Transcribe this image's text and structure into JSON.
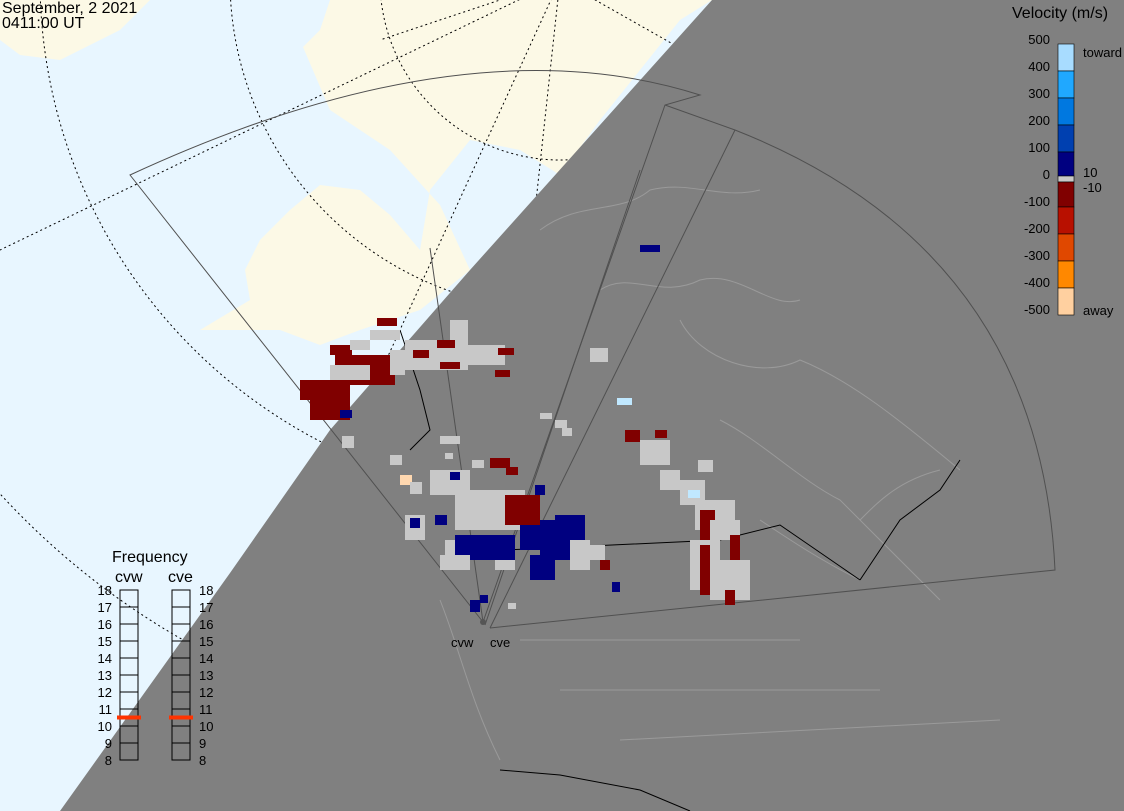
{
  "header": {
    "date": "September, 2 2021",
    "time": "0411:00 UT"
  },
  "colorbar": {
    "title": "Velocity (m/s)",
    "ticks": [
      "500",
      "400",
      "300",
      "200",
      "100",
      "0",
      "-100",
      "-200",
      "-300",
      "-400",
      "-500"
    ],
    "toward_label": "toward",
    "away_label": "away",
    "gs_upper": "10",
    "gs_lower": "-10",
    "colors": [
      "#a8dcff",
      "#20a8ff",
      "#0078e0",
      "#0040b0",
      "#000080",
      "#c8c8c8",
      "#800000",
      "#b81000",
      "#e04800",
      "#ff8800",
      "#ffd0a0"
    ]
  },
  "frequency": {
    "title": "Frequency",
    "radars": [
      {
        "name": "cvw",
        "value_mhz": 10.5
      },
      {
        "name": "cve",
        "value_mhz": 10.5
      }
    ],
    "ticks": [
      "18",
      "17",
      "16",
      "15",
      "14",
      "13",
      "12",
      "11",
      "10",
      "9",
      "8"
    ],
    "marker_color": "#ff3300"
  },
  "map": {
    "radar_labels": [
      "cvw",
      "cve"
    ],
    "colors": {
      "ocean": "#e8f6ff",
      "land": "#fcf9e6",
      "night": "#808080",
      "ground_scatter": "#c8c8c8"
    }
  }
}
